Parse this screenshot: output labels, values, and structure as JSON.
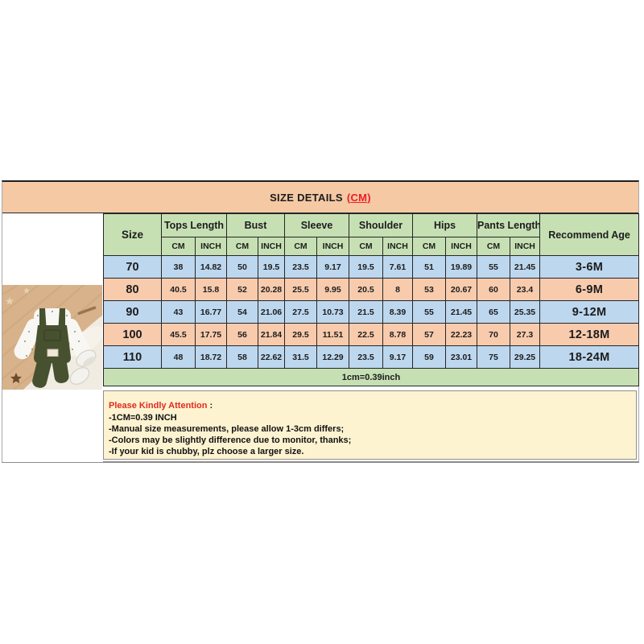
{
  "title": {
    "text": "SIZE DETAILS",
    "unit_suffix": "(CM)"
  },
  "size_table": {
    "corner_label": "Size",
    "recommend_age_label": "Recommend Age",
    "unit_labels": {
      "cm": "CM",
      "inch": "INCH"
    },
    "column_groups": [
      {
        "label": "Tops Length"
      },
      {
        "label": "Bust"
      },
      {
        "label": "Sleeve"
      },
      {
        "label": "Shoulder"
      },
      {
        "label": "Hips"
      },
      {
        "label": "Pants Length"
      }
    ],
    "rows": [
      {
        "size": "70",
        "values": [
          "38",
          "14.82",
          "50",
          "19.5",
          "23.5",
          "9.17",
          "19.5",
          "7.61",
          "51",
          "19.89",
          "55",
          "21.45"
        ],
        "age": "3-6M"
      },
      {
        "size": "80",
        "values": [
          "40.5",
          "15.8",
          "52",
          "20.28",
          "25.5",
          "9.95",
          "20.5",
          "8",
          "53",
          "20.67",
          "60",
          "23.4"
        ],
        "age": "6-9M"
      },
      {
        "size": "90",
        "values": [
          "43",
          "16.77",
          "54",
          "21.06",
          "27.5",
          "10.73",
          "21.5",
          "8.39",
          "55",
          "21.45",
          "65",
          "25.35"
        ],
        "age": "9-12M"
      },
      {
        "size": "100",
        "values": [
          "45.5",
          "17.75",
          "56",
          "21.84",
          "29.5",
          "11.51",
          "22.5",
          "8.78",
          "57",
          "22.23",
          "70",
          "27.3"
        ],
        "age": "12-18M"
      },
      {
        "size": "110",
        "values": [
          "48",
          "18.72",
          "58",
          "22.62",
          "31.5",
          "12.29",
          "23.5",
          "9.17",
          "59",
          "23.01",
          "75",
          "29.25"
        ],
        "age": "18-24M"
      }
    ],
    "conversion_note": "1cm=0.39inch"
  },
  "attention_box": {
    "heading": "Please Kindly Attention",
    "heading_colon": " :",
    "lines": [
      "-1CM=0.39 INCH",
      "-Manual size measurements, please allow 1-3cm differs;",
      "-Colors may be slightly difference due to monitor, thanks;",
      "-If your kid is chubby, plz choose a larger size."
    ]
  },
  "colors": {
    "header_bar": "#f5c9a4",
    "group_header_green": "#c6e0b4",
    "row_blue": "#bdd7ee",
    "row_orange": "#f8cbad",
    "note_green": "#c6e0b4",
    "attention_bg": "#fdf3d1",
    "accent_red": "#ee1c25",
    "border_dark": "#262626"
  }
}
